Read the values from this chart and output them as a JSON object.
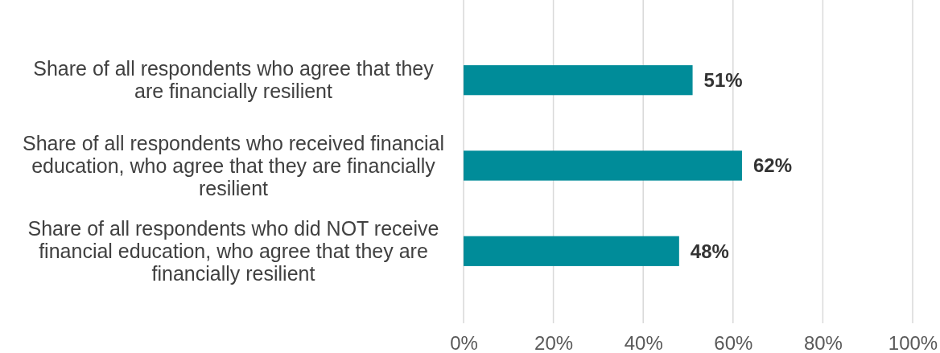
{
  "chart_data": {
    "type": "bar",
    "orientation": "horizontal",
    "categories": [
      "Share of all respondents who agree that they are financially resilient",
      "Share of all respondents who received financial education, who agree that they are financially resilient",
      "Share of all respondents who did NOT receive financial education, who agree that they are financially resilient"
    ],
    "values": [
      51,
      62,
      48
    ],
    "color": "#008c99",
    "value_labels": [
      "51%",
      "62%",
      "48%"
    ],
    "xlim": [
      0,
      100
    ],
    "xticks": [
      {
        "value": 0,
        "label": "0%"
      },
      {
        "value": 20,
        "label": "20%"
      },
      {
        "value": 40,
        "label": "40%"
      },
      {
        "value": 60,
        "label": "60%"
      },
      {
        "value": 80,
        "label": "80%"
      },
      {
        "value": 100,
        "label": "100%"
      }
    ],
    "grid": "x"
  }
}
